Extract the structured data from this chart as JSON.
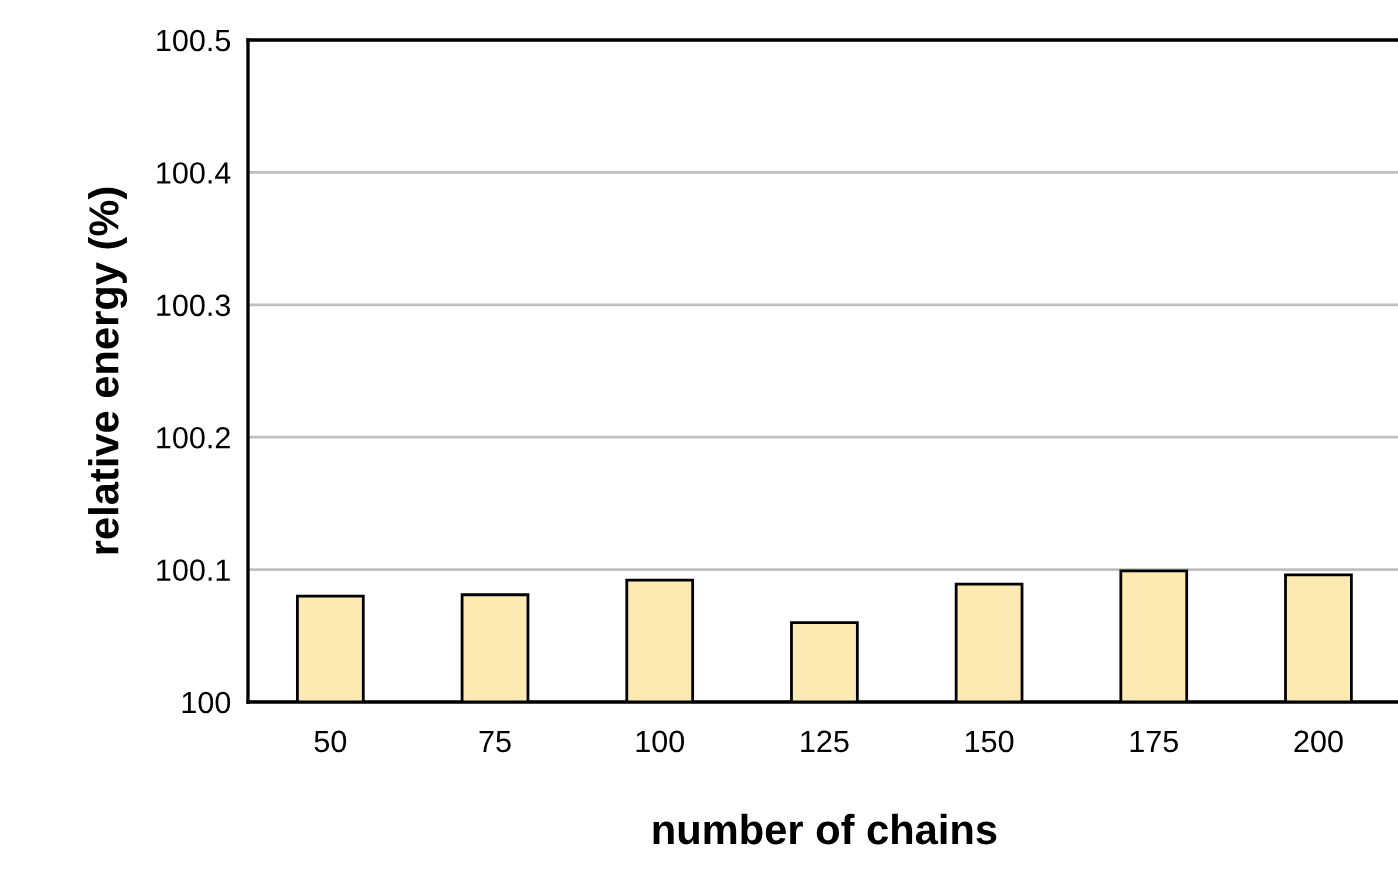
{
  "chart_data": {
    "type": "bar",
    "xlabel": "number of chains",
    "ylabel": "relative energy (%)",
    "categories": [
      "50",
      "75",
      "100",
      "125",
      "150",
      "175",
      "200"
    ],
    "values": [
      100.08,
      100.081,
      100.092,
      100.06,
      100.089,
      100.099,
      100.096
    ],
    "color": "#fde9b2",
    "ylim": [
      100,
      100.5
    ],
    "yticks": [
      {
        "value": 100,
        "label": "100"
      },
      100.1,
      100.2,
      100.3,
      100.4,
      100.5
    ],
    "grid": "y"
  }
}
